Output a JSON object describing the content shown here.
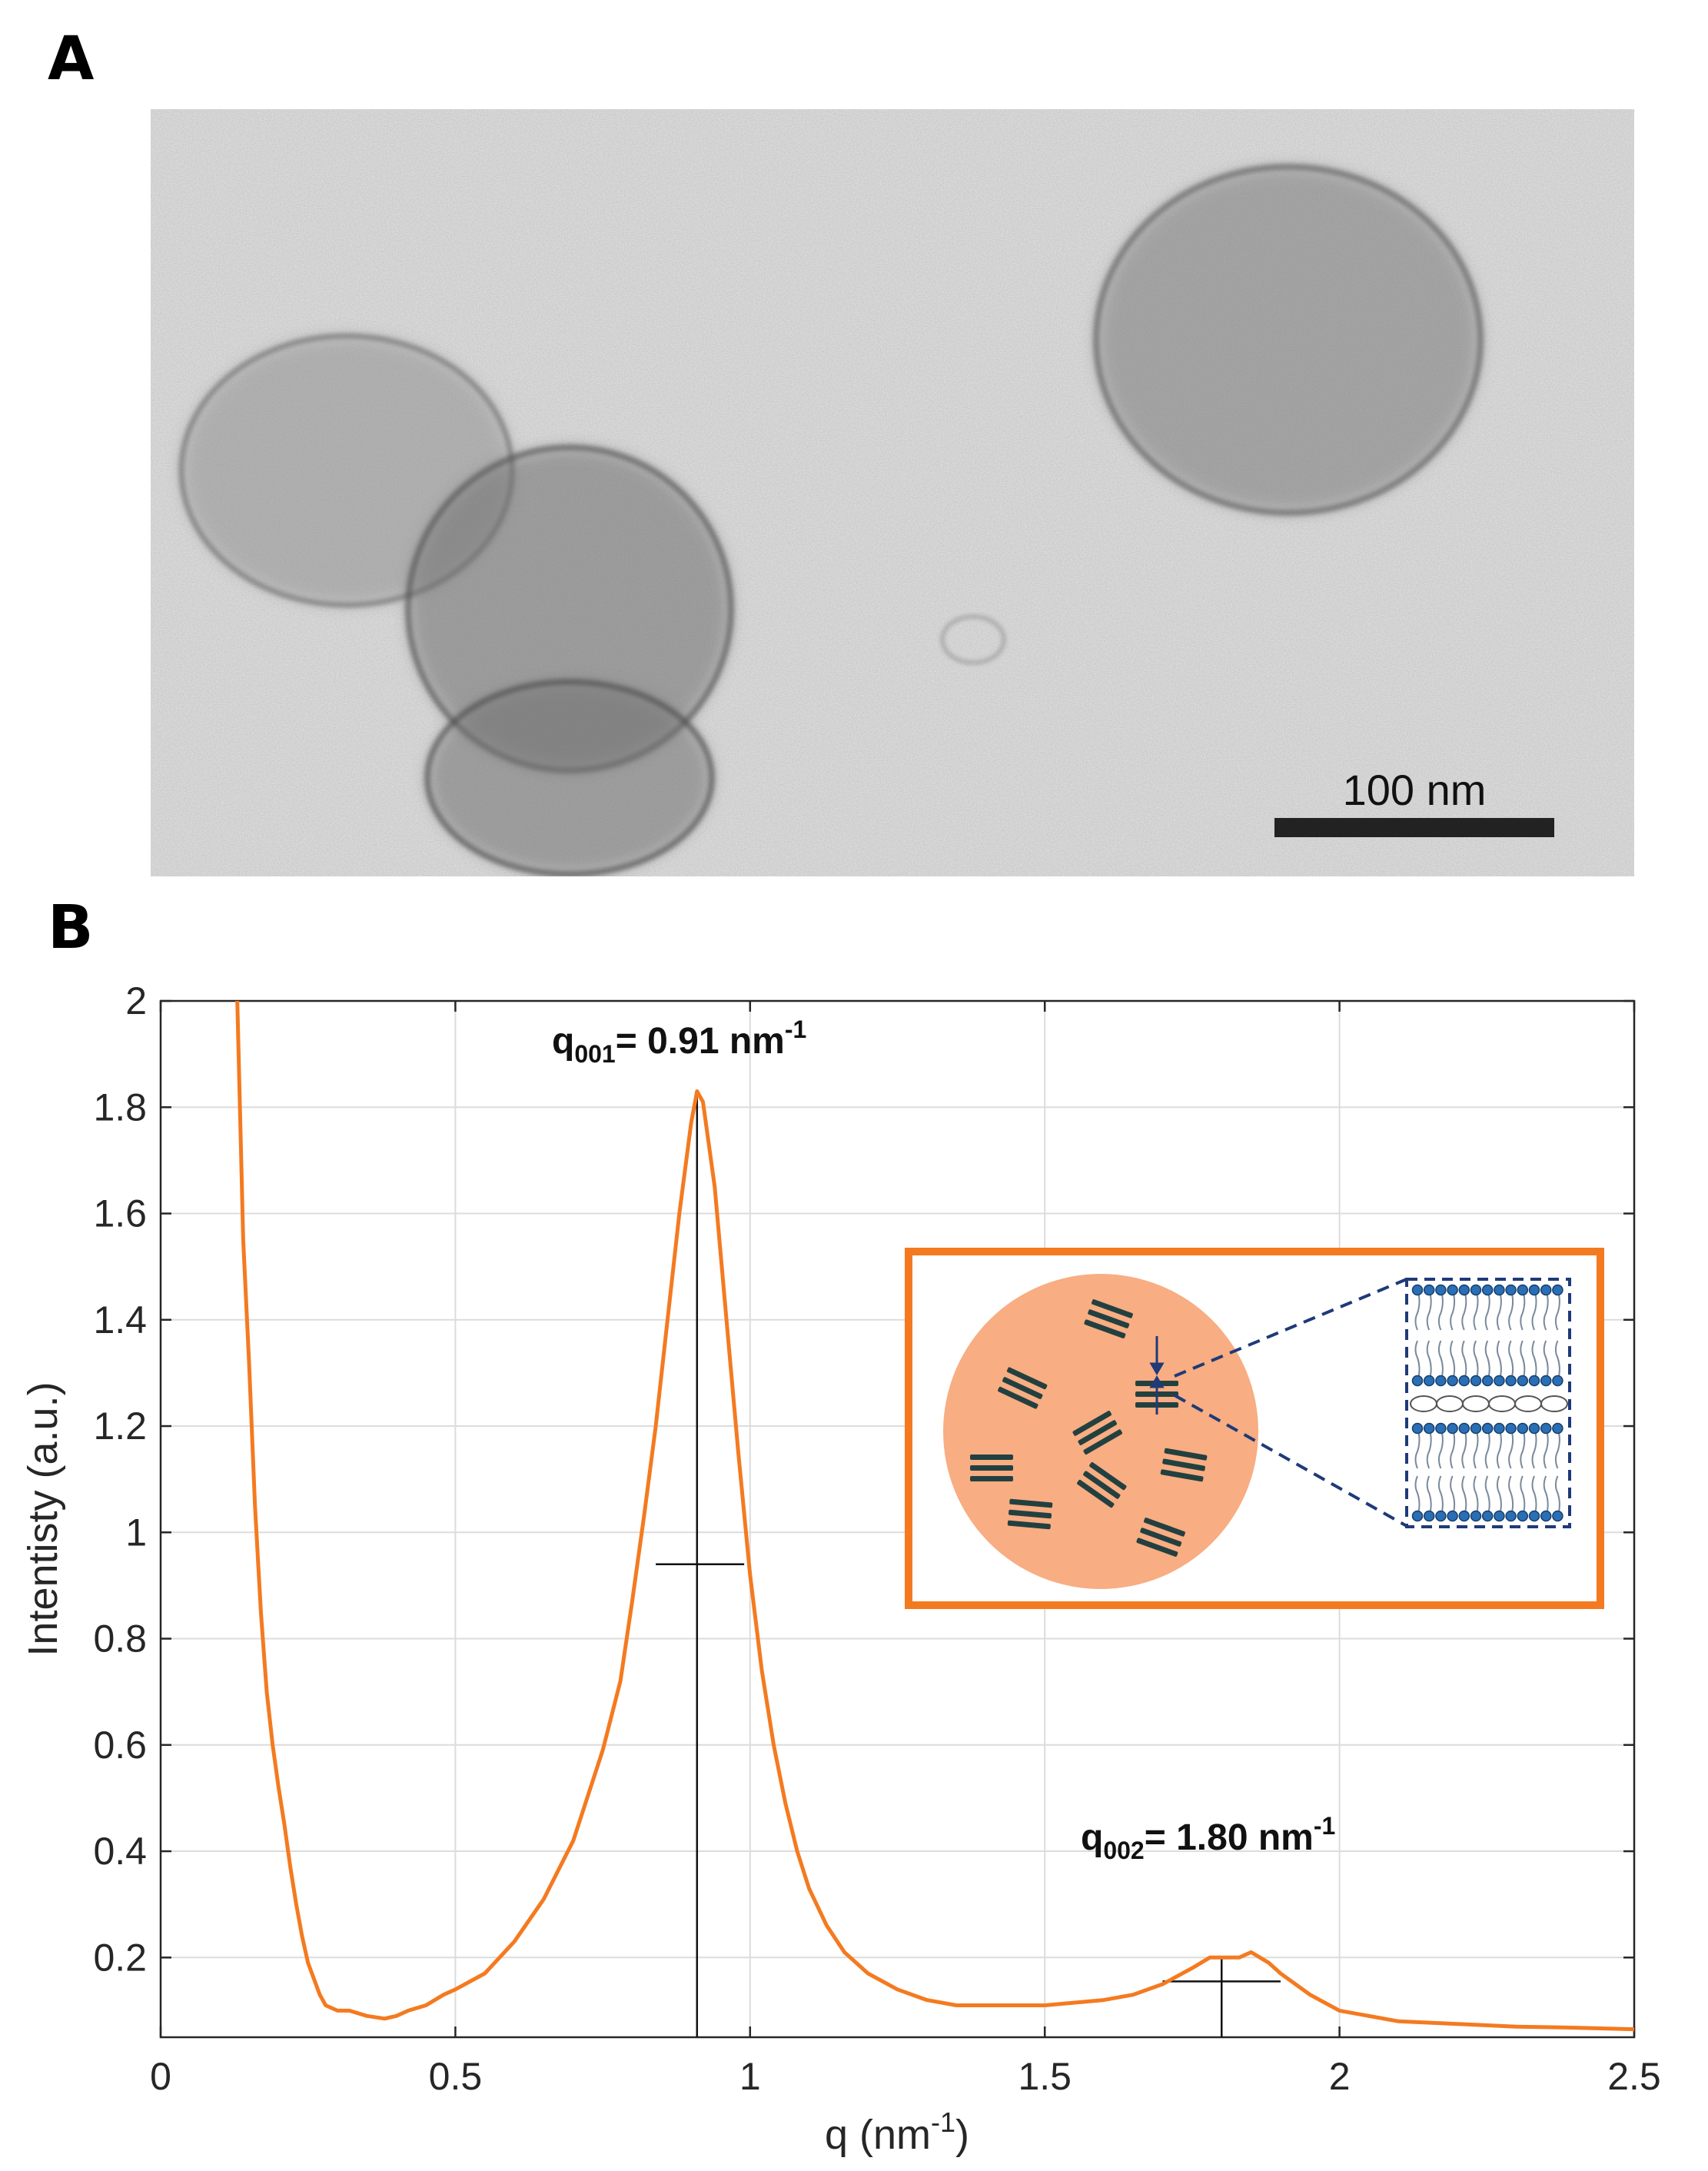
{
  "panel_a": {
    "label": "A",
    "scale_bar_label": "100 nm",
    "scale_bar_value_nm": 100
  },
  "panel_b": {
    "label": "B"
  },
  "colors": {
    "curve": "#f47a20",
    "inset_border": "#f47a20",
    "inset_circle": "#f8ad82",
    "bilayer_marks": "#234040",
    "lipid_heads": "#2a6fb5",
    "dashed_leader": "#1f3a78"
  },
  "chart_data": {
    "type": "line",
    "xlabel": "q (nm",
    "xlabel_sup": "-1",
    "xlabel_close": ")",
    "ylabel": "Intentisty (a.u.)",
    "xlim": [
      0,
      2.5
    ],
    "ylim": [
      0.05,
      2
    ],
    "grid": true,
    "x_ticks": [
      0,
      0.5,
      1,
      1.5,
      2,
      2.5
    ],
    "x_tick_labels": [
      "0",
      "0.5",
      "1",
      "1.5",
      "2",
      "2.5"
    ],
    "y_ticks": [
      0.2,
      0.4,
      0.6,
      0.8,
      1,
      1.2,
      1.4,
      1.6,
      1.8,
      2
    ],
    "y_tick_labels": [
      "0.2",
      "0.4",
      "0.6",
      "0.8",
      "1",
      "1.2",
      "1.4",
      "1.6",
      "1.8",
      "2"
    ],
    "series": [
      {
        "x": [
          0.13,
          0.14,
          0.15,
          0.16,
          0.17,
          0.18,
          0.19,
          0.2,
          0.21,
          0.22,
          0.23,
          0.24,
          0.25,
          0.26,
          0.27,
          0.28,
          0.3,
          0.32,
          0.35,
          0.38,
          0.4,
          0.42,
          0.45,
          0.48,
          0.5,
          0.55,
          0.6,
          0.65,
          0.7,
          0.75,
          0.78,
          0.8,
          0.82,
          0.84,
          0.86,
          0.88,
          0.9,
          0.91,
          0.92,
          0.94,
          0.96,
          0.98,
          1.0,
          1.02,
          1.04,
          1.06,
          1.08,
          1.1,
          1.13,
          1.16,
          1.2,
          1.25,
          1.3,
          1.35,
          1.4,
          1.5,
          1.6,
          1.65,
          1.7,
          1.75,
          1.78,
          1.8,
          1.83,
          1.85,
          1.88,
          1.9,
          1.95,
          2.0,
          2.1,
          2.2,
          2.3,
          2.4,
          2.5
        ],
        "y": [
          2.0,
          1.55,
          1.32,
          1.05,
          0.85,
          0.7,
          0.6,
          0.52,
          0.45,
          0.37,
          0.3,
          0.24,
          0.19,
          0.16,
          0.13,
          0.11,
          0.1,
          0.1,
          0.09,
          0.085,
          0.09,
          0.1,
          0.11,
          0.13,
          0.14,
          0.17,
          0.23,
          0.31,
          0.42,
          0.59,
          0.72,
          0.87,
          1.03,
          1.2,
          1.4,
          1.6,
          1.77,
          1.83,
          1.81,
          1.65,
          1.4,
          1.15,
          0.92,
          0.74,
          0.6,
          0.49,
          0.4,
          0.33,
          0.26,
          0.21,
          0.17,
          0.14,
          0.12,
          0.11,
          0.11,
          0.11,
          0.12,
          0.13,
          0.15,
          0.18,
          0.2,
          0.2,
          0.2,
          0.21,
          0.19,
          0.17,
          0.13,
          0.1,
          0.08,
          0.075,
          0.07,
          0.068,
          0.065
        ]
      }
    ],
    "annotations": [
      {
        "base": "q",
        "sub": "001",
        "text": "= 0.91 nm",
        "sup": "-1",
        "peak_x": 0.91,
        "peak_y": 1.83,
        "fwhm_y": 0.94,
        "fwhm_x": [
          0.84,
          0.99
        ]
      },
      {
        "base": "q",
        "sub": "002",
        "text": "= 1.80 nm",
        "sup": "-1",
        "peak_x": 1.8,
        "peak_y": 0.2,
        "fwhm_y": 0.155,
        "fwhm_x": [
          1.7,
          1.9
        ]
      }
    ]
  }
}
